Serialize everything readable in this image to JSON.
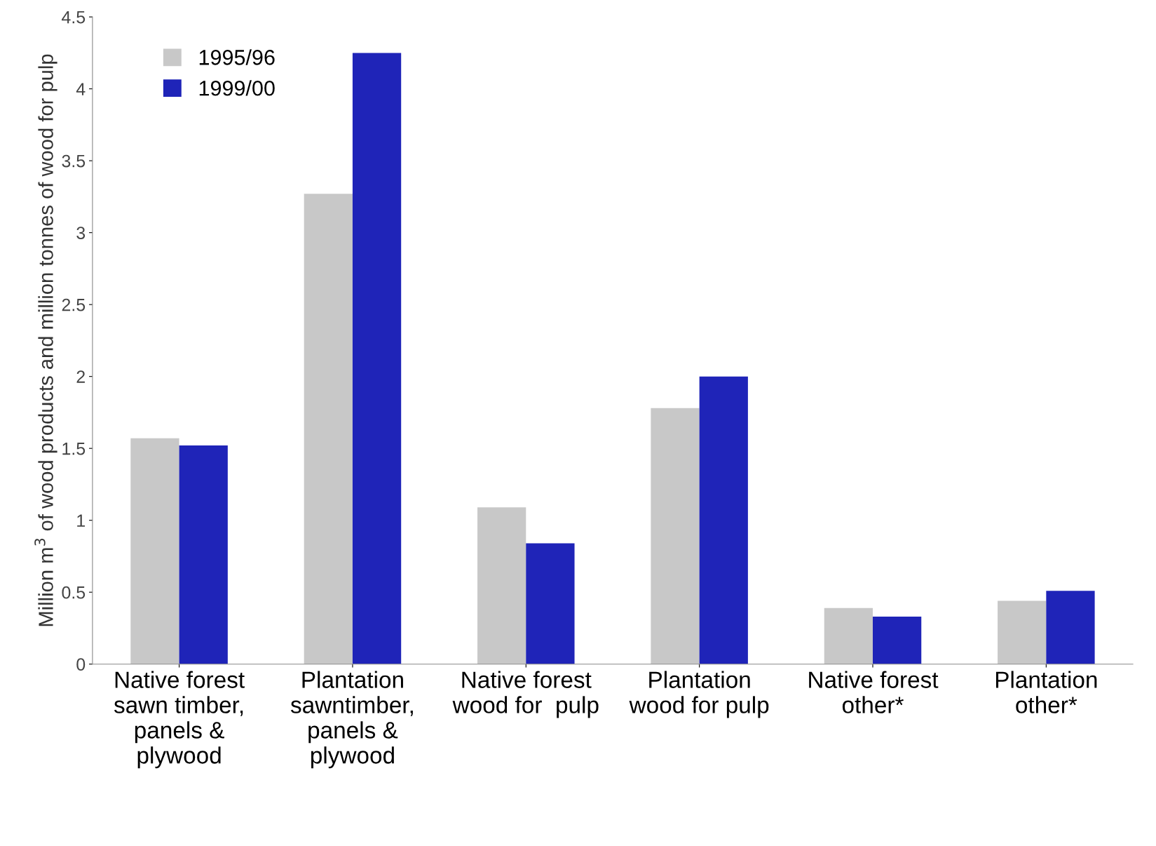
{
  "chart_data": {
    "type": "bar",
    "ylabel": "Million m$^{3}$ of wood products and million tonnes of wood for pulp",
    "categories": [
      "Native forest\nsawn timber,\npanels &\nplywood",
      "Plantation\nsawntimber,\npanels &\nplywood",
      "Native forest\nwood for  pulp",
      "Plantation\nwood for pulp",
      "Native forest\nother*",
      "Plantation\nother*"
    ],
    "series": [
      {
        "name": "1995/96",
        "color": "#c8c8c8",
        "values": [
          1.57,
          3.27,
          1.09,
          1.78,
          0.39,
          0.44
        ]
      },
      {
        "name": "1999/00",
        "color": "#1f24b8",
        "values": [
          1.52,
          4.25,
          0.84,
          2.0,
          0.33,
          0.51
        ]
      }
    ],
    "ylim": [
      0,
      4.5
    ],
    "yticks": [
      0,
      0.5,
      1,
      1.5,
      2,
      2.5,
      3,
      3.5,
      4,
      4.5
    ],
    "grid": false,
    "legend": "top left"
  }
}
